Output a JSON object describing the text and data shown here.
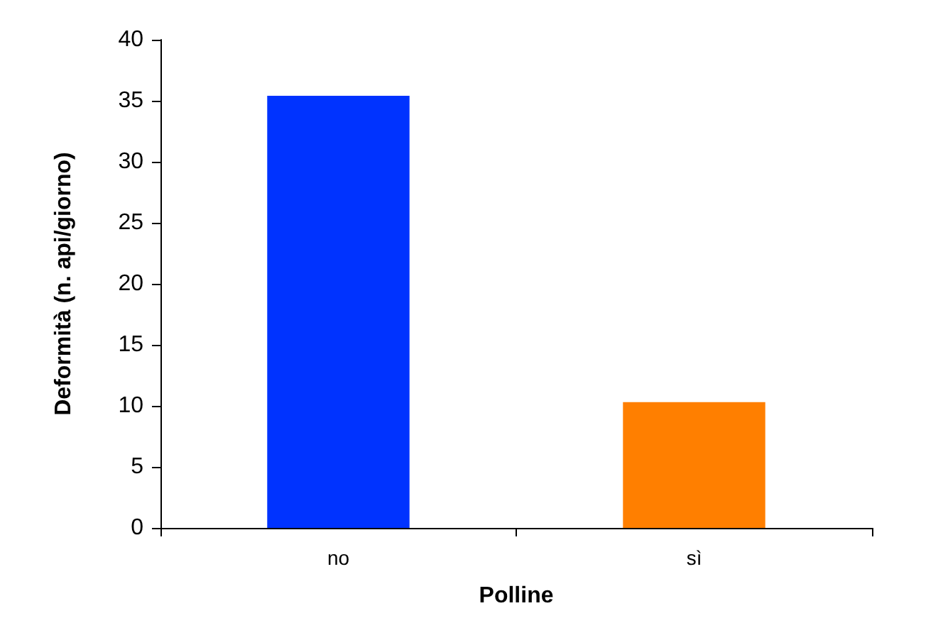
{
  "chart_data": {
    "type": "bar",
    "xlabel": "Polline",
    "ylabel": "Deformità (n. api/giorno)",
    "categories": [
      "no",
      "sì"
    ],
    "values": [
      35.4,
      10.3
    ],
    "colors": [
      "#0033ff",
      "#ff7f00"
    ],
    "ylim": [
      0,
      40
    ],
    "yticks": [
      0,
      5,
      10,
      15,
      20,
      25,
      30,
      35,
      40
    ],
    "grid": false
  }
}
